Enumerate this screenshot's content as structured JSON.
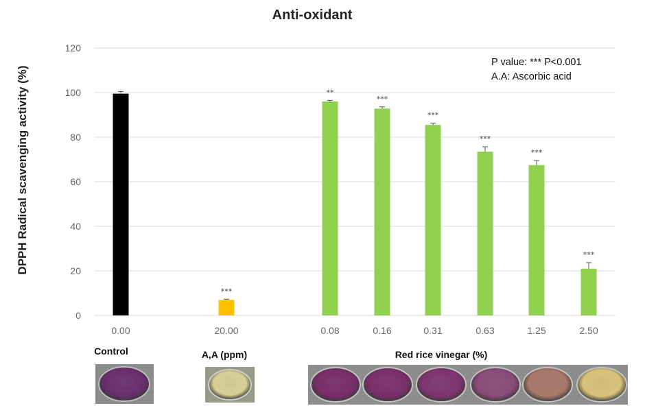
{
  "chart_data": {
    "type": "bar",
    "title": "Anti-oxidant",
    "ylabel": "DPPH Radical scavenging activity (%)",
    "xlabel": "",
    "ylim": [
      0,
      120
    ],
    "yticks": [
      "0",
      "20",
      "40",
      "60",
      "80",
      "100",
      "120"
    ],
    "grid": true,
    "categories": [
      "0.00",
      "20.00",
      "0.08",
      "0.16",
      "0.31",
      "0.63",
      "1.25",
      "2.50"
    ],
    "values": [
      99.5,
      7,
      96,
      92.8,
      85.5,
      73.5,
      67.5,
      21
    ],
    "errors": [
      1,
      0.3,
      0.5,
      0.8,
      0.8,
      2.2,
      2,
      2.7
    ],
    "significance": [
      "",
      "***",
      "**",
      "***",
      "***",
      "***",
      "***",
      "***"
    ],
    "colors": [
      "#000000",
      "#ffc000",
      "#92d050",
      "#92d050",
      "#92d050",
      "#92d050",
      "#92d050",
      "#92d050"
    ],
    "annotations": [
      "P value: *** P<0.001",
      "A.A: Ascorbic acid"
    ],
    "group_labels": [
      "Control",
      "A,A (ppm)",
      "Red rice vinegar (%)"
    ],
    "well_colors": [
      "#6a2d6e",
      "#d8cf96",
      "#7a2c6a",
      "#7c2e6b",
      "#7e3470",
      "#8a4a78",
      "#a8786a",
      "#d9c27a"
    ]
  }
}
